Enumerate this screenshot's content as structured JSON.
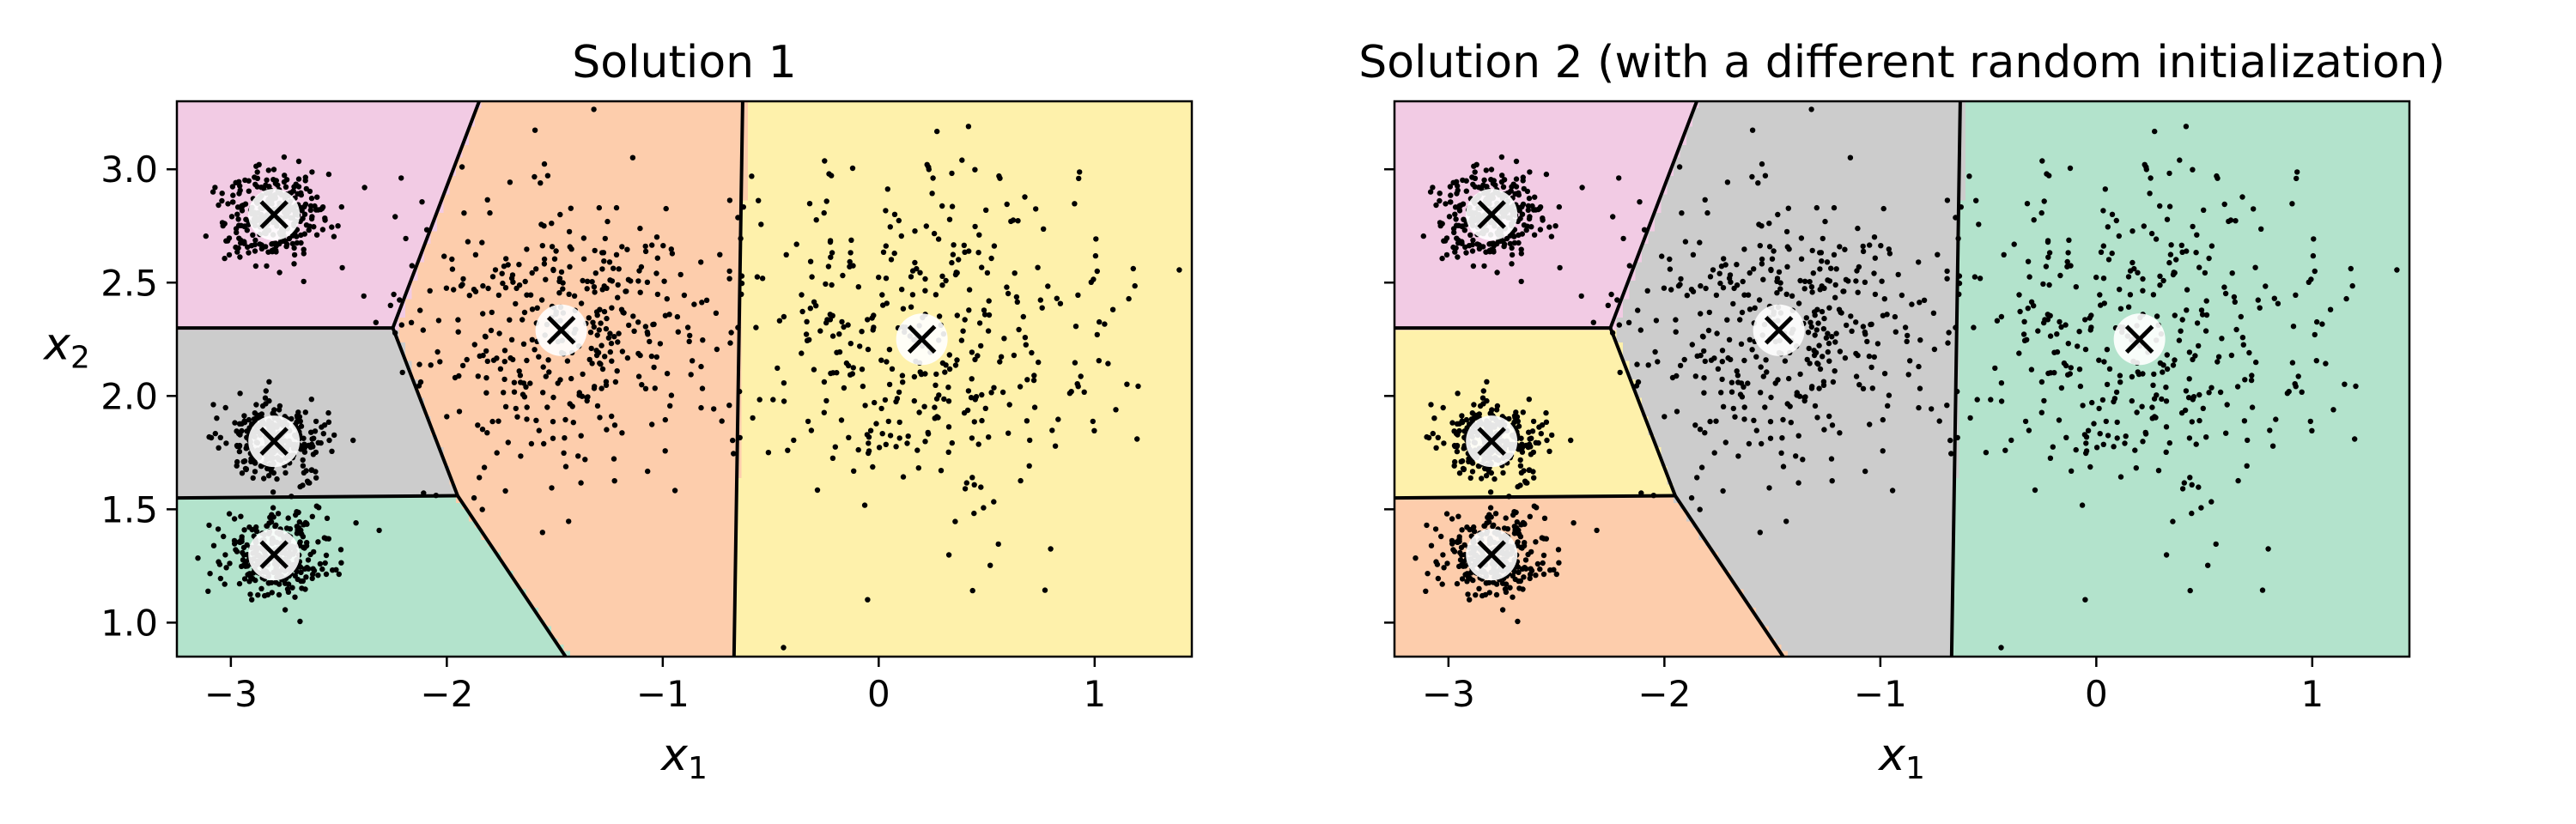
{
  "chart_data": [
    {
      "type": "scatter",
      "title": "Solution 1",
      "xlabel": "x",
      "xlabel_sub": "1",
      "ylabel": "x",
      "ylabel_sub": "2",
      "xlim": [
        -3.25,
        1.45
      ],
      "ylim": [
        0.85,
        3.3
      ],
      "xticks": [
        -3,
        -2,
        -1,
        0,
        1
      ],
      "xtick_labels": [
        "−3",
        "−2",
        "−1",
        "0",
        "1"
      ],
      "yticks": [
        1.0,
        1.5,
        2.0,
        2.5,
        3.0
      ],
      "ytick_labels": [
        "1.0",
        "1.5",
        "2.0",
        "2.5",
        "3.0"
      ],
      "show_yticklabels": true,
      "grid": false,
      "centroids": [
        {
          "x": -2.8,
          "y": 2.8
        },
        {
          "x": -2.8,
          "y": 1.8
        },
        {
          "x": -2.8,
          "y": 1.3
        },
        {
          "x": -1.47,
          "y": 2.29
        },
        {
          "x": 0.2,
          "y": 2.25
        }
      ],
      "region_colors": [
        "#f2cbe4",
        "#cccccc",
        "#b3e3cc",
        "#fdcdac",
        "#fef1ab"
      ],
      "boundary_lines": [
        [
          [
            -2.25,
            2.3
          ],
          [
            -1.85,
            3.3
          ]
        ],
        [
          [
            -2.25,
            2.3
          ],
          [
            -3.25,
            2.3
          ]
        ],
        [
          [
            -2.25,
            2.3
          ],
          [
            -1.95,
            1.56
          ]
        ],
        [
          [
            -1.95,
            1.56
          ],
          [
            -3.25,
            1.55
          ]
        ],
        [
          [
            -1.95,
            1.56
          ],
          [
            -1.45,
            0.85
          ]
        ],
        [
          [
            -0.63,
            3.3
          ],
          [
            -0.67,
            0.85
          ]
        ]
      ],
      "point_clusters": [
        {
          "cx": -2.8,
          "cy": 2.8,
          "sx": 0.12,
          "sy": 0.11,
          "n": 300
        },
        {
          "cx": -2.8,
          "cy": 1.8,
          "sx": 0.12,
          "sy": 0.09,
          "n": 300
        },
        {
          "cx": -2.8,
          "cy": 1.3,
          "sx": 0.13,
          "sy": 0.09,
          "n": 300
        },
        {
          "cx": -1.47,
          "cy": 2.29,
          "sx": 0.35,
          "sy": 0.3,
          "n": 400
        },
        {
          "cx": 0.2,
          "cy": 2.25,
          "sx": 0.45,
          "sy": 0.4,
          "n": 400
        }
      ]
    },
    {
      "type": "scatter",
      "title": "Solution 2 (with a different random initialization)",
      "xlabel": "x",
      "xlabel_sub": "1",
      "ylabel": "",
      "ylabel_sub": "",
      "xlim": [
        -3.25,
        1.45
      ],
      "ylim": [
        0.85,
        3.3
      ],
      "xticks": [
        -3,
        -2,
        -1,
        0,
        1
      ],
      "xtick_labels": [
        "−3",
        "−2",
        "−1",
        "0",
        "1"
      ],
      "yticks": [
        1.0,
        1.5,
        2.0,
        2.5,
        3.0
      ],
      "ytick_labels": [
        "1.0",
        "1.5",
        "2.0",
        "2.5",
        "3.0"
      ],
      "show_yticklabels": false,
      "grid": false,
      "centroids": [
        {
          "x": -2.8,
          "y": 2.8
        },
        {
          "x": -2.8,
          "y": 1.8
        },
        {
          "x": -2.8,
          "y": 1.3
        },
        {
          "x": -1.47,
          "y": 2.29
        },
        {
          "x": 0.2,
          "y": 2.25
        }
      ],
      "region_colors": [
        "#f2cbe4",
        "#fef1ab",
        "#fdcdac",
        "#cccccc",
        "#b3e3cc"
      ],
      "boundary_lines": [
        [
          [
            -2.25,
            2.3
          ],
          [
            -1.85,
            3.3
          ]
        ],
        [
          [
            -2.25,
            2.3
          ],
          [
            -3.25,
            2.3
          ]
        ],
        [
          [
            -2.25,
            2.3
          ],
          [
            -1.95,
            1.56
          ]
        ],
        [
          [
            -1.95,
            1.56
          ],
          [
            -3.25,
            1.55
          ]
        ],
        [
          [
            -1.95,
            1.56
          ],
          [
            -1.45,
            0.85
          ]
        ],
        [
          [
            -0.63,
            3.3
          ],
          [
            -0.67,
            0.85
          ]
        ]
      ],
      "point_clusters": [
        {
          "cx": -2.8,
          "cy": 2.8,
          "sx": 0.12,
          "sy": 0.11,
          "n": 300
        },
        {
          "cx": -2.8,
          "cy": 1.8,
          "sx": 0.12,
          "sy": 0.09,
          "n": 300
        },
        {
          "cx": -2.8,
          "cy": 1.3,
          "sx": 0.13,
          "sy": 0.09,
          "n": 300
        },
        {
          "cx": -1.47,
          "cy": 2.29,
          "sx": 0.35,
          "sy": 0.3,
          "n": 400
        },
        {
          "cx": 0.2,
          "cy": 2.25,
          "sx": 0.45,
          "sy": 0.4,
          "n": 400
        }
      ]
    }
  ]
}
